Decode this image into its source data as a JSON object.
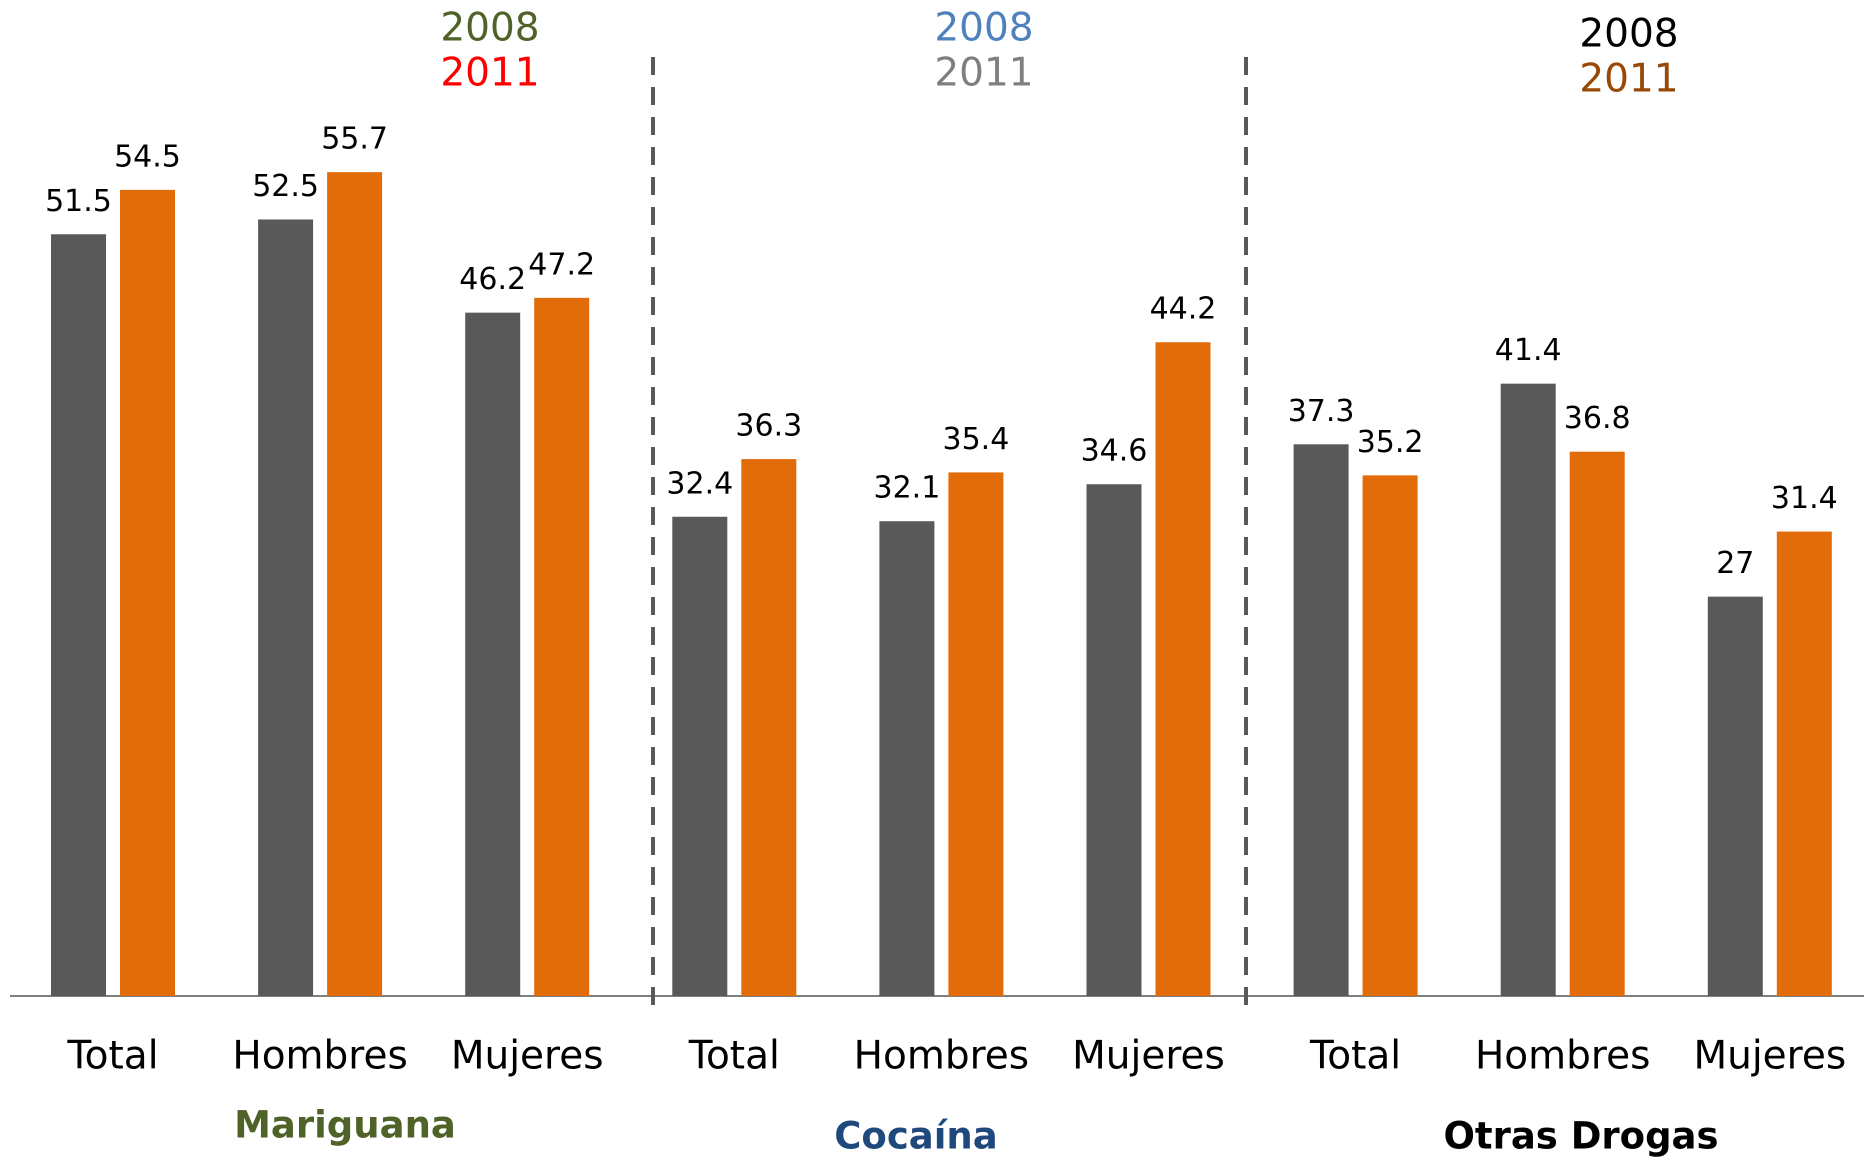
{
  "chart_data": {
    "type": "bar",
    "categories": [
      "Total",
      "Hombres",
      "Mujeres",
      "Total",
      "Hombres",
      "Mujeres",
      "Total",
      "Hombres",
      "Mujeres"
    ],
    "series": [
      {
        "name": "2008",
        "color": "#595959",
        "values": [
          51.5,
          52.5,
          46.2,
          32.4,
          32.1,
          34.6,
          37.3,
          41.4,
          27
        ]
      },
      {
        "name": "2011",
        "color": "#e36c0a",
        "values": [
          54.5,
          55.7,
          47.2,
          36.3,
          35.4,
          44.2,
          35.2,
          36.8,
          31.4
        ]
      }
    ],
    "groups": [
      {
        "name": "Mariguana",
        "color": "#4f6228",
        "legend_colors": [
          "#4f6228",
          "#ff0000"
        ]
      },
      {
        "name": "Cocaína",
        "color": "#1f497d",
        "legend_colors": [
          "#4f81bd",
          "#7f7f7f"
        ]
      },
      {
        "name": "Otras Drogas",
        "color": "#000000",
        "legend_colors": [
          "#000000",
          "#984807"
        ]
      }
    ],
    "ylim": [
      0,
      67
    ],
    "grid": false
  }
}
